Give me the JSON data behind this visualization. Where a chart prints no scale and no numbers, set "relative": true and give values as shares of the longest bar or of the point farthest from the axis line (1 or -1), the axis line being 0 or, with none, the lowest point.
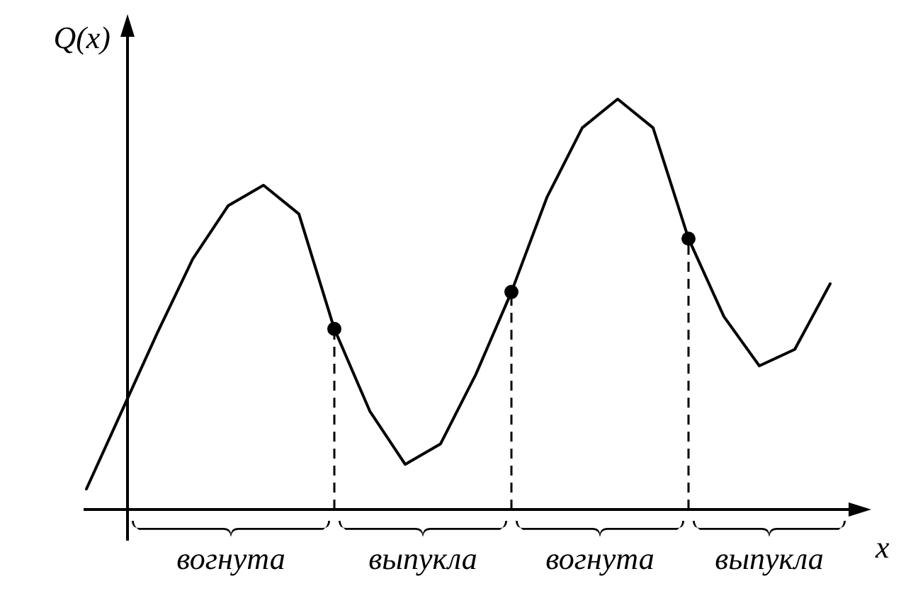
{
  "chart_data": {
    "type": "line",
    "relative": true,
    "xlabel": "x",
    "ylabel": "Q(x)",
    "categories": [
      null,
      null,
      null,
      null,
      null,
      null,
      null,
      null,
      null,
      null,
      null,
      null,
      null,
      null,
      null,
      null,
      null,
      null,
      null,
      null,
      null,
      null
    ],
    "series": [
      {
        "color": "#000000",
        "marker": "none",
        "values": [
          0.05,
          0.24,
          0.43,
          0.61,
          0.74,
          0.79,
          0.72,
          0.44,
          0.24,
          0.11,
          0.16,
          0.33,
          0.53,
          0.76,
          0.93,
          1,
          0.93,
          0.66,
          0.47,
          0.35,
          0.39,
          0.55
        ]
      }
    ],
    "annotations": [
      "вогнута",
      "выпукла",
      "вогнута",
      "выпукла"
    ]
  }
}
